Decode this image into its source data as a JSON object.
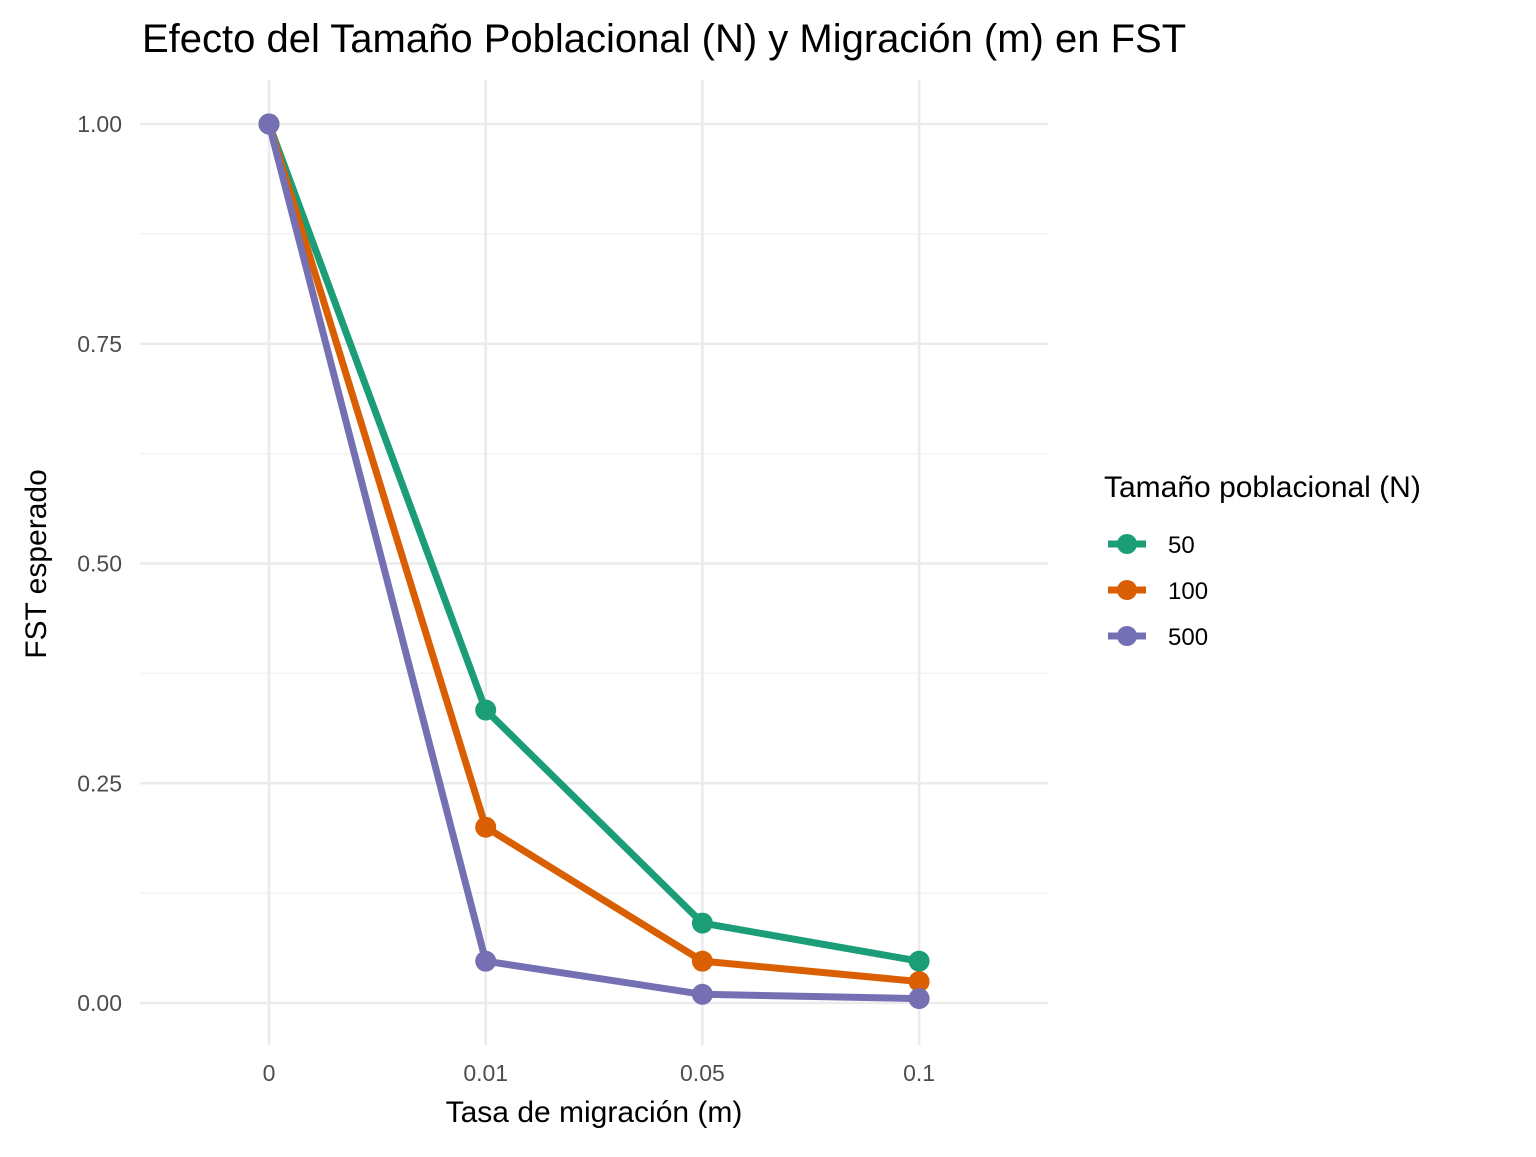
{
  "chart_data": {
    "type": "line",
    "title": "Efecto del Tamaño Poblacional (N) y Migración (m) en FST",
    "xlabel": "Tasa de migración (m)",
    "ylabel": "FST esperado",
    "categories": [
      "0",
      "0.01",
      "0.05",
      "0.1"
    ],
    "ylim": [
      0,
      1
    ],
    "yticks": [
      "0.00",
      "0.25",
      "0.50",
      "0.75",
      "1.00"
    ],
    "grid": true,
    "legend": {
      "title": "Tamaño poblacional (N)",
      "position": "right"
    },
    "series": [
      {
        "name": "50",
        "color": "#1b9e77",
        "values": [
          1.0,
          0.3333,
          0.0909,
          0.0476
        ]
      },
      {
        "name": "100",
        "color": "#d95f02",
        "values": [
          1.0,
          0.2,
          0.0476,
          0.0244
        ]
      },
      {
        "name": "500",
        "color": "#7570b3",
        "values": [
          1.0,
          0.0476,
          0.0099,
          0.005
        ]
      }
    ]
  }
}
